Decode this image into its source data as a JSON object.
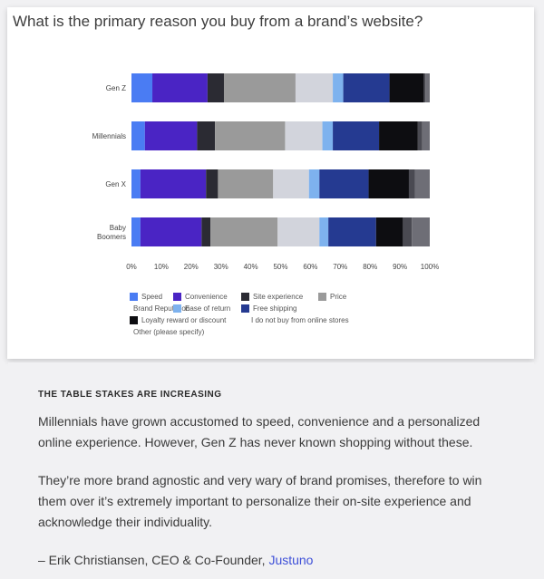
{
  "chart_data": {
    "type": "bar",
    "orientation": "horizontal",
    "stacked": true,
    "title": "What is the primary reason you buy from a brand’s website?",
    "categories": [
      "Gen Z",
      "Millennials",
      "Gen X",
      "Baby Boomers"
    ],
    "xlim": [
      0,
      100
    ],
    "x_ticks": [
      "0%",
      "10%",
      "20%",
      "30%",
      "40%",
      "50%",
      "60%",
      "70%",
      "80%",
      "90%",
      "100%"
    ],
    "grid": false,
    "legend_position": "bottom",
    "series": [
      {
        "name": "Speed",
        "color": "#4a7cf3",
        "values": [
          7,
          4.5,
          3,
          3
        ]
      },
      {
        "name": "Convenience",
        "color": "#4a24c4",
        "values": [
          18.5,
          17.5,
          22,
          20.5
        ]
      },
      {
        "name": "Site experience",
        "color": "#2b2b33",
        "values": [
          5.5,
          6,
          4,
          3
        ]
      },
      {
        "name": "Price",
        "color": "#9a9a9a",
        "values": [
          24,
          23.5,
          18.5,
          22.5
        ]
      },
      {
        "name": "Brand Reputation",
        "color": "#d2d4dc",
        "values": [
          12.5,
          12.5,
          12,
          14
        ]
      },
      {
        "name": "Ease of return",
        "color": "#7eb2ee",
        "values": [
          3.5,
          3.5,
          3.5,
          3
        ]
      },
      {
        "name": "Free shipping",
        "color": "#253a91",
        "values": [
          15.5,
          15.5,
          16.5,
          16
        ]
      },
      {
        "name": "Loyalty reward or discount",
        "color": "#0d0d11",
        "values": [
          11.5,
          13,
          13.5,
          9
        ]
      },
      {
        "name": "I do not buy from online stores",
        "color": "#4a4a52",
        "values": [
          0.5,
          1.5,
          2,
          3
        ]
      },
      {
        "name": "Other (please specify)",
        "color": "#6e6e76",
        "values": [
          1.5,
          2.5,
          5,
          6
        ]
      }
    ]
  },
  "quote": {
    "heading": "THE TABLE STAKES ARE INCREASING",
    "paragraph1": "Millennials have grown accustomed to speed, convenience and a personalized online experience. However, Gen Z has never known shopping without these.",
    "paragraph2": "They’re more brand agnostic and very wary of brand promises, therefore to win them over it’s extremely important to personalize their on-site experience and acknowledge their individuality.",
    "attribution_prefix": "– Erik Christiansen, CEO & Co-Founder, ",
    "company": "Justuno"
  }
}
